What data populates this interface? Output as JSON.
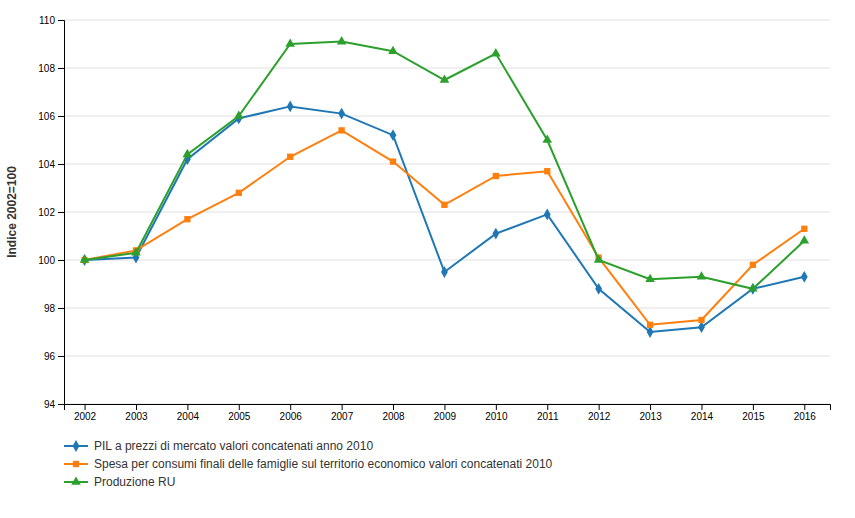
{
  "chart_data": {
    "type": "line",
    "y_label": "Indice 2002=100",
    "x": [
      2002,
      2003,
      2004,
      2005,
      2006,
      2007,
      2008,
      2009,
      2010,
      2011,
      2012,
      2013,
      2014,
      2015,
      2016
    ],
    "series": [
      {
        "name": "PIL a prezzi di mercato valori concatenati anno 2010",
        "marker": "diamond",
        "values": [
          100.0,
          100.1,
          104.2,
          105.9,
          106.4,
          106.1,
          105.2,
          99.5,
          101.1,
          101.9,
          98.8,
          97.0,
          97.2,
          98.8,
          99.3
        ]
      },
      {
        "name": "Spesa per consumi finali delle famiglie sul territorio economico valori concatenati 2010",
        "marker": "square",
        "values": [
          100.0,
          100.4,
          101.7,
          102.8,
          104.3,
          105.4,
          104.1,
          102.3,
          103.5,
          103.7,
          100.1,
          97.3,
          97.5,
          99.8,
          101.3
        ]
      },
      {
        "name": "Produzione RU",
        "marker": "triangle",
        "values": [
          100.0,
          100.3,
          104.4,
          106.0,
          109.0,
          109.1,
          108.7,
          107.5,
          108.6,
          105.0,
          100.0,
          99.2,
          99.3,
          98.8,
          100.8
        ]
      }
    ],
    "xlim": [
      2001.6,
      2016.5
    ],
    "xticks": [
      2002,
      2003,
      2004,
      2005,
      2006,
      2007,
      2008,
      2009,
      2010,
      2011,
      2012,
      2013,
      2014,
      2015,
      2016
    ],
    "ylim": [
      94,
      110
    ],
    "yticks": [
      94,
      96,
      98,
      100,
      102,
      104,
      106,
      108,
      110
    ],
    "grid": true,
    "legend": "bottom"
  }
}
